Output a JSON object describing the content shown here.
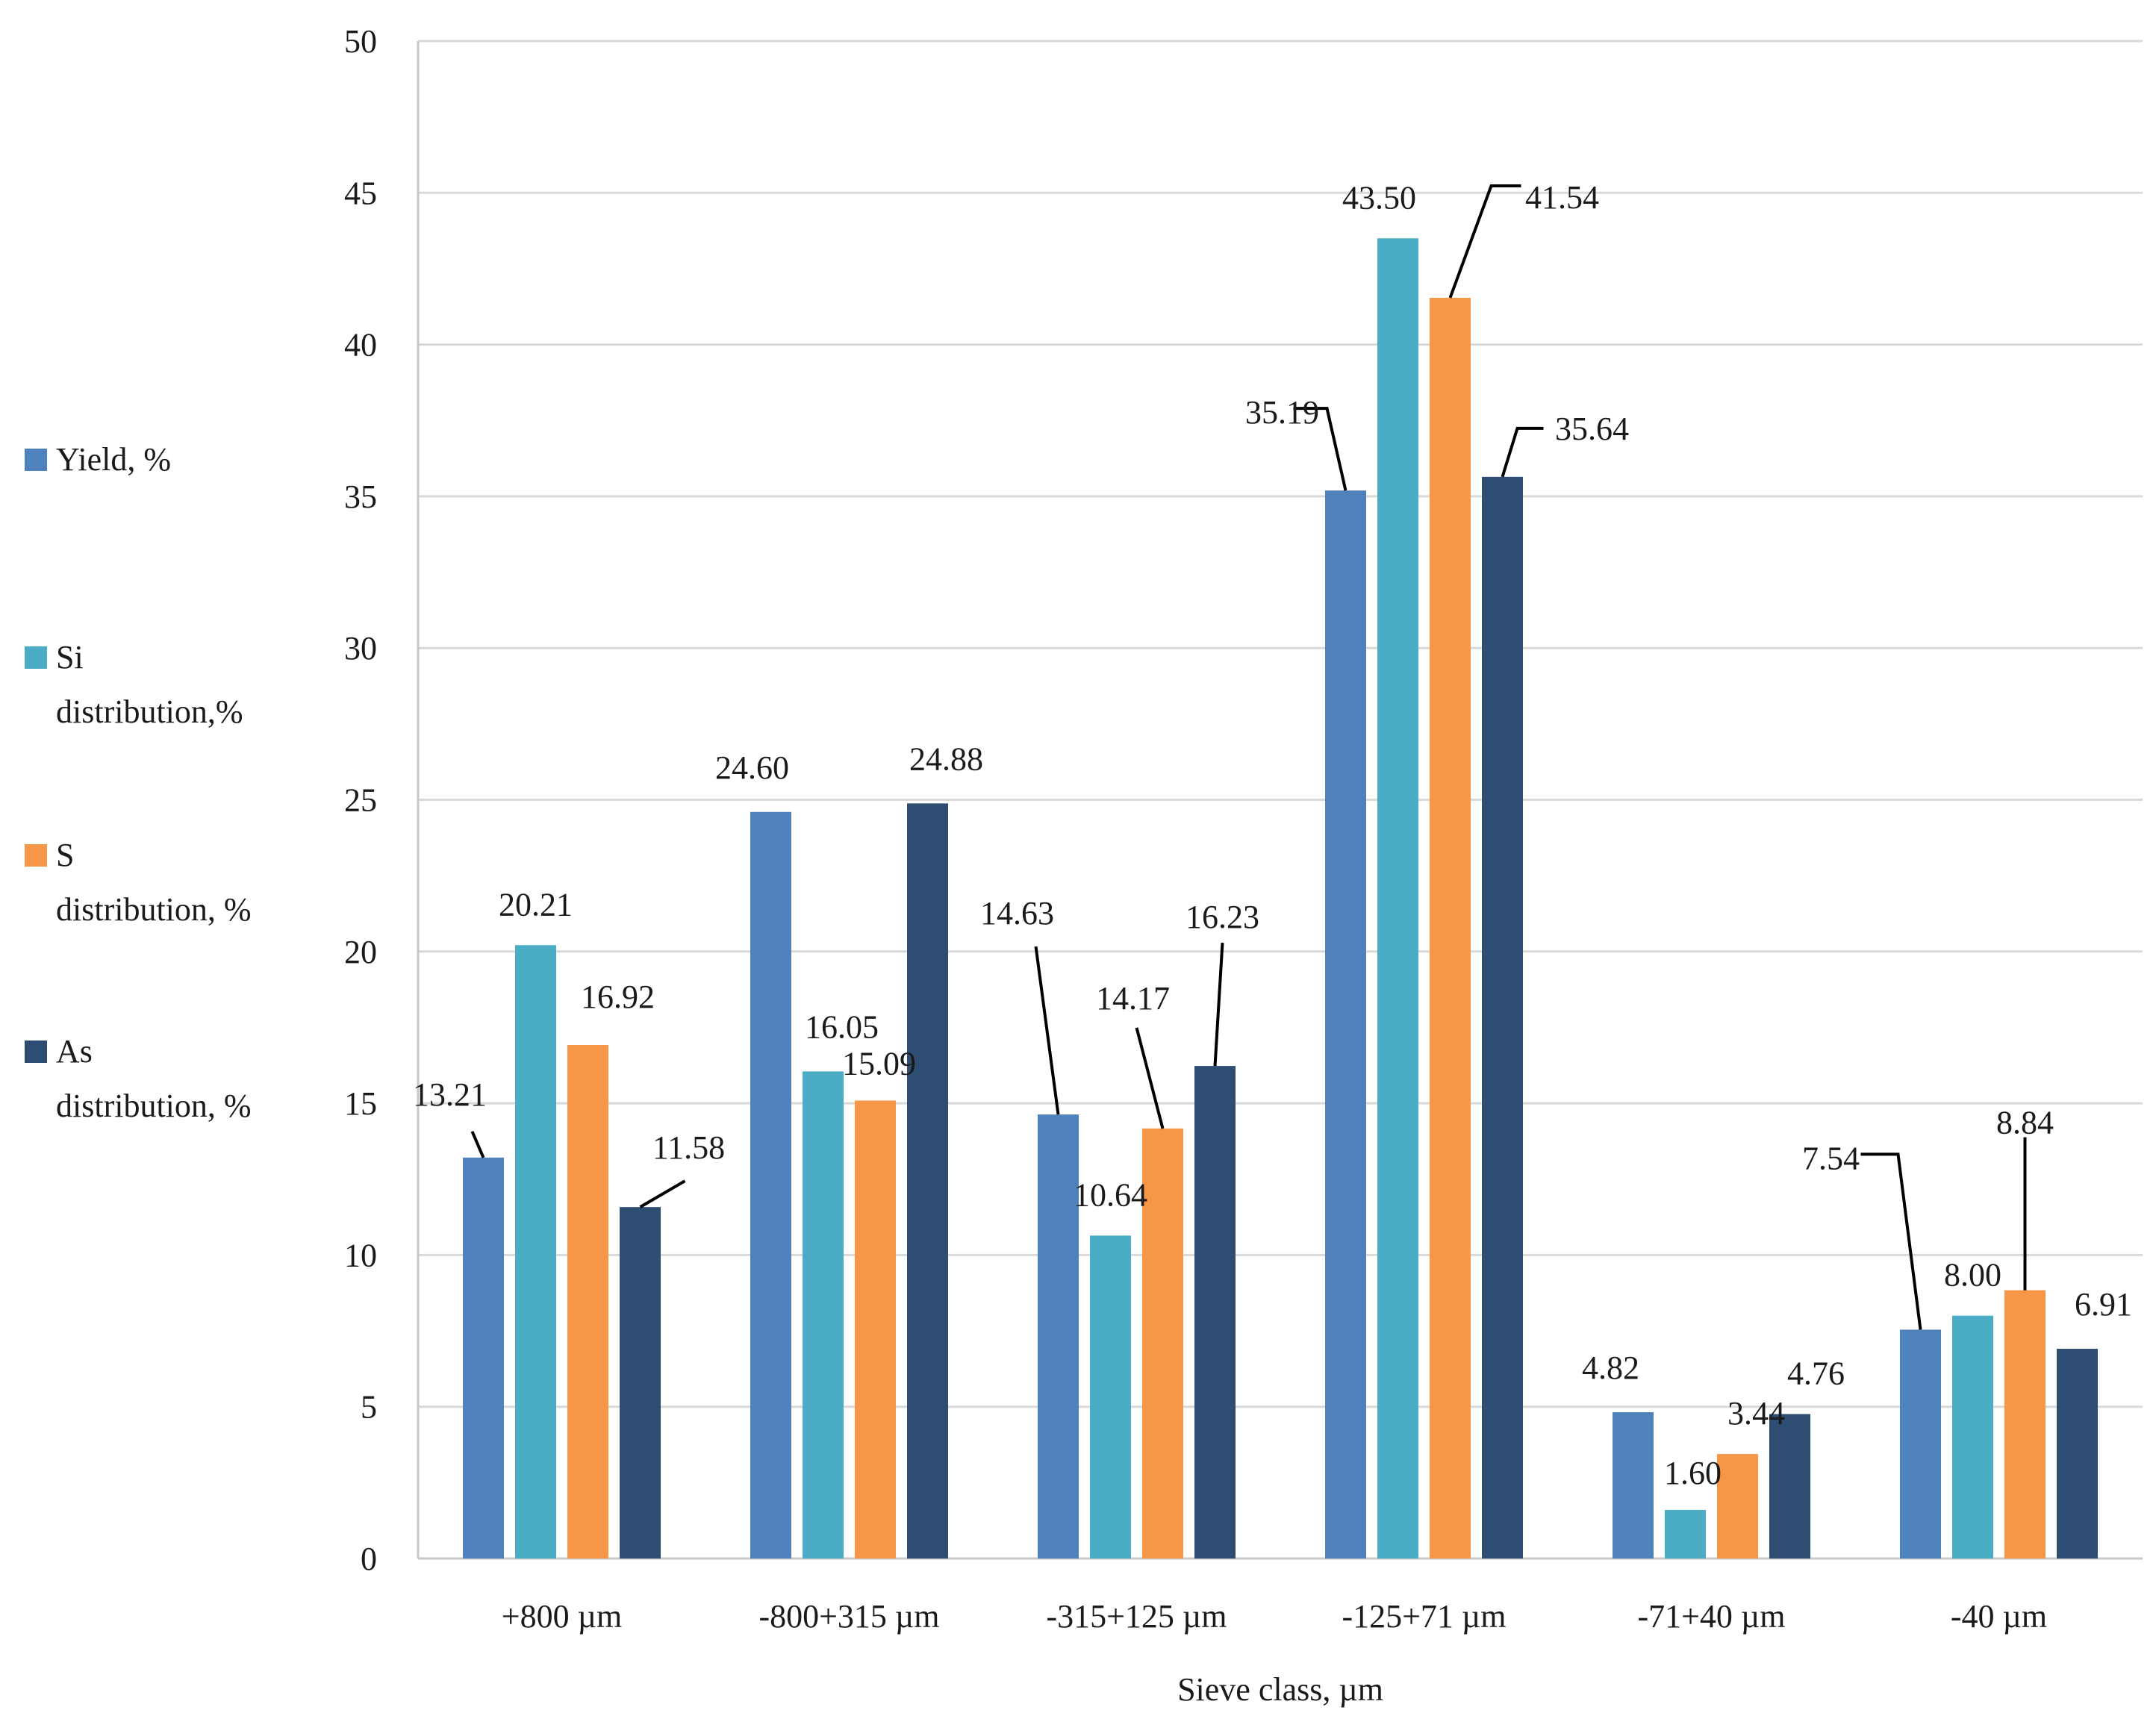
{
  "chart_data": {
    "type": "bar",
    "title": "",
    "xlabel": "Sieve class, µm",
    "ylabel": "",
    "ylim": [
      0,
      50
    ],
    "ytick_step": 5,
    "grid": true,
    "legend_position": "left",
    "categories": [
      "+800 µm",
      "-800+315 µm",
      "-315+125 µm",
      "-125+71 µm",
      "-71+40 µm",
      "-40 µm"
    ],
    "series": [
      {
        "name": "Yield, %",
        "legend_lines": [
          "Yield, %"
        ],
        "color": "#4F81BD",
        "values": [
          13.21,
          24.6,
          14.63,
          35.19,
          4.82,
          7.54
        ],
        "labels": [
          "13.21",
          "24.60",
          "14.63",
          "35.19",
          "4.82",
          "7.54"
        ]
      },
      {
        "name": "Si distribution,%",
        "legend_lines": [
          "Si",
          "distribution,%"
        ],
        "color": "#4BACC6",
        "values": [
          20.21,
          16.05,
          10.64,
          43.5,
          1.6,
          8.0
        ],
        "labels": [
          "20.21",
          "16.05",
          "10.64",
          "43.50",
          "1.60",
          "8.00"
        ]
      },
      {
        "name": "S distribution, %",
        "legend_lines": [
          "S",
          "distribution, %"
        ],
        "color": "#F79646",
        "values": [
          16.92,
          15.09,
          14.17,
          41.54,
          3.44,
          8.84
        ],
        "labels": [
          "16.92",
          "15.09",
          "14.17",
          "41.54",
          "3.44",
          "8.84"
        ]
      },
      {
        "name": "As distribution, %",
        "legend_lines": [
          "As",
          "distribution, %"
        ],
        "color": "#2E4D73",
        "values": [
          11.58,
          24.88,
          16.23,
          35.64,
          4.76,
          6.91
        ],
        "labels": [
          "11.58",
          "24.88",
          "16.23",
          "35.64",
          "4.76",
          "6.91"
        ]
      }
    ]
  }
}
